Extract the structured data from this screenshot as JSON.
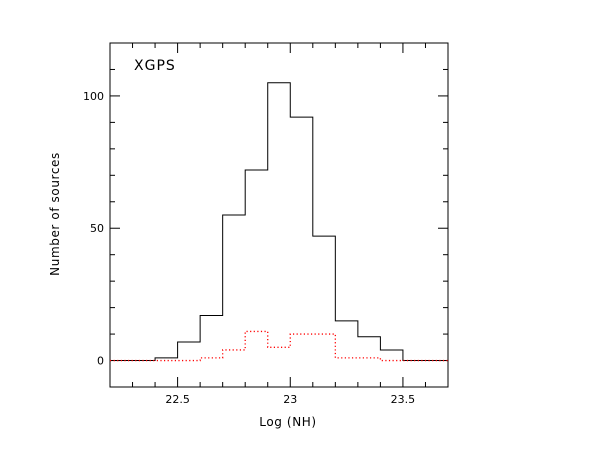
{
  "chart_data": {
    "type": "step-histogram",
    "title": "",
    "annotation": "XGPS",
    "xlabel": "Log (NH)",
    "ylabel": "Number of  sources",
    "xlim": [
      22.2,
      23.7
    ],
    "ylim": [
      -10,
      120
    ],
    "x_ticks": {
      "major": [
        22.5,
        23.0,
        23.5
      ],
      "major_labels": [
        "22.5",
        "23",
        "23.5"
      ],
      "minor_step": 0.1
    },
    "y_ticks": {
      "major": [
        0,
        50,
        100
      ],
      "major_labels": [
        "0",
        "50",
        "100"
      ],
      "minor_step": 10
    },
    "grid": false,
    "legend": null,
    "series": [
      {
        "style": "solid",
        "color": "#000000",
        "bins": [
          {
            "x0": 22.2,
            "x1": 22.3,
            "y": 0
          },
          {
            "x0": 22.3,
            "x1": 22.4,
            "y": 0
          },
          {
            "x0": 22.4,
            "x1": 22.5,
            "y": 1
          },
          {
            "x0": 22.5,
            "x1": 22.6,
            "y": 7
          },
          {
            "x0": 22.6,
            "x1": 22.7,
            "y": 17
          },
          {
            "x0": 22.7,
            "x1": 22.8,
            "y": 55
          },
          {
            "x0": 22.8,
            "x1": 22.9,
            "y": 72
          },
          {
            "x0": 22.9,
            "x1": 23.0,
            "y": 105
          },
          {
            "x0": 23.0,
            "x1": 23.1,
            "y": 92
          },
          {
            "x0": 23.1,
            "x1": 23.2,
            "y": 47
          },
          {
            "x0": 23.2,
            "x1": 23.3,
            "y": 15
          },
          {
            "x0": 23.3,
            "x1": 23.4,
            "y": 9
          },
          {
            "x0": 23.4,
            "x1": 23.5,
            "y": 4
          },
          {
            "x0": 23.5,
            "x1": 23.6,
            "y": 0
          },
          {
            "x0": 23.6,
            "x1": 23.7,
            "y": 0
          }
        ]
      },
      {
        "style": "dotted",
        "color": "#ff0000",
        "bins": [
          {
            "x0": 22.2,
            "x1": 22.4,
            "y": 0
          },
          {
            "x0": 22.4,
            "x1": 22.5,
            "y": 0
          },
          {
            "x0": 22.5,
            "x1": 22.6,
            "y": 0
          },
          {
            "x0": 22.6,
            "x1": 22.7,
            "y": 1
          },
          {
            "x0": 22.7,
            "x1": 22.8,
            "y": 4
          },
          {
            "x0": 22.8,
            "x1": 22.9,
            "y": 11
          },
          {
            "x0": 22.9,
            "x1": 23.0,
            "y": 5
          },
          {
            "x0": 23.0,
            "x1": 23.1,
            "y": 10
          },
          {
            "x0": 23.1,
            "x1": 23.2,
            "y": 10
          },
          {
            "x0": 23.2,
            "x1": 23.3,
            "y": 1
          },
          {
            "x0": 23.3,
            "x1": 23.4,
            "y": 1
          },
          {
            "x0": 23.4,
            "x1": 23.5,
            "y": 0
          },
          {
            "x0": 23.5,
            "x1": 23.7,
            "y": 0
          }
        ]
      }
    ]
  }
}
